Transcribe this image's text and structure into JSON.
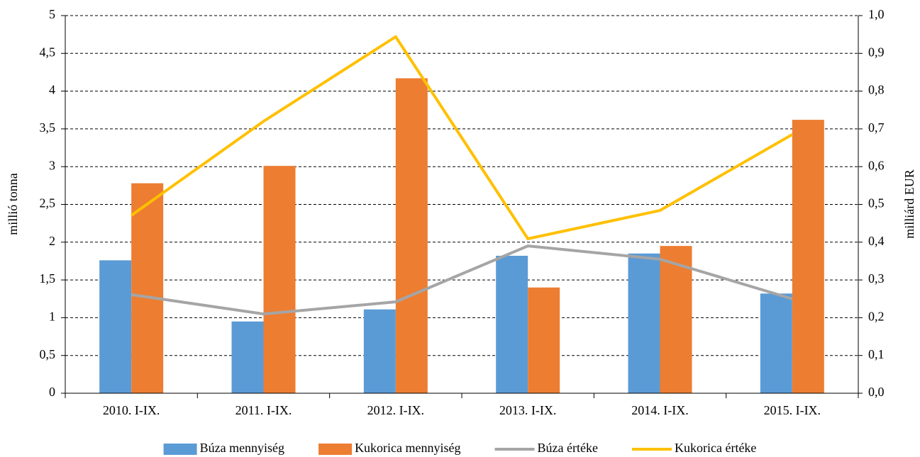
{
  "chart_data": {
    "type": "bar",
    "categories": [
      "2010. I-IX.",
      "2011. I-IX.",
      "2012. I-IX.",
      "2013. I-IX.",
      "2014. I-IX.",
      "2015. I-IX."
    ],
    "series": [
      {
        "name": "Búza mennyiség",
        "color": "#5b9bd5",
        "type": "bar",
        "values": [
          1.76,
          0.95,
          1.11,
          1.82,
          1.85,
          1.32
        ]
      },
      {
        "name": "Kukorica mennyiség",
        "color": "#ed7d31",
        "type": "bar",
        "values": [
          2.78,
          3.01,
          4.17,
          1.4,
          1.95,
          3.62
        ]
      },
      {
        "name": "Búza értéke",
        "color": "#a5a5a5",
        "type": "line",
        "axis": "y2",
        "values": [
          0.261,
          0.21,
          0.242,
          0.39,
          0.355,
          0.25
        ]
      },
      {
        "name": "Kukorica értéke",
        "color": "#ffc000",
        "type": "line",
        "axis": "y2",
        "values": [
          0.471,
          0.72,
          0.944,
          0.409,
          0.484,
          0.685
        ]
      }
    ],
    "ylabel": "millió tonna",
    "y2label": "milliárd EUR",
    "ylim": [
      0,
      5
    ],
    "yticks": [
      0,
      {
        "value": 0.5,
        "label": "0,5"
      },
      1,
      {
        "value": 1.5,
        "label": "1,5"
      },
      2,
      {
        "value": 2.5,
        "label": "2,5"
      },
      3,
      {
        "value": 3.5,
        "label": "3,5"
      },
      4,
      {
        "value": 4.5,
        "label": "4,5"
      },
      5
    ],
    "y2lim": [
      0,
      1
    ],
    "y2ticks": [
      {
        "value": 0,
        "label": "0,0"
      },
      {
        "value": 0.1,
        "label": "0,1"
      },
      {
        "value": 0.2,
        "label": "0,2"
      },
      {
        "value": 0.3,
        "label": "0,3"
      },
      {
        "value": 0.4,
        "label": "0,4"
      },
      {
        "value": 0.5,
        "label": "0,5"
      },
      {
        "value": 0.6,
        "label": "0,6"
      },
      {
        "value": 0.7,
        "label": "0,7"
      },
      {
        "value": 0.8,
        "label": "0,8"
      },
      {
        "value": 0.9,
        "label": "0,9"
      },
      {
        "value": 1,
        "label": "1,0"
      }
    ],
    "grid": true,
    "legend": "bottom"
  }
}
